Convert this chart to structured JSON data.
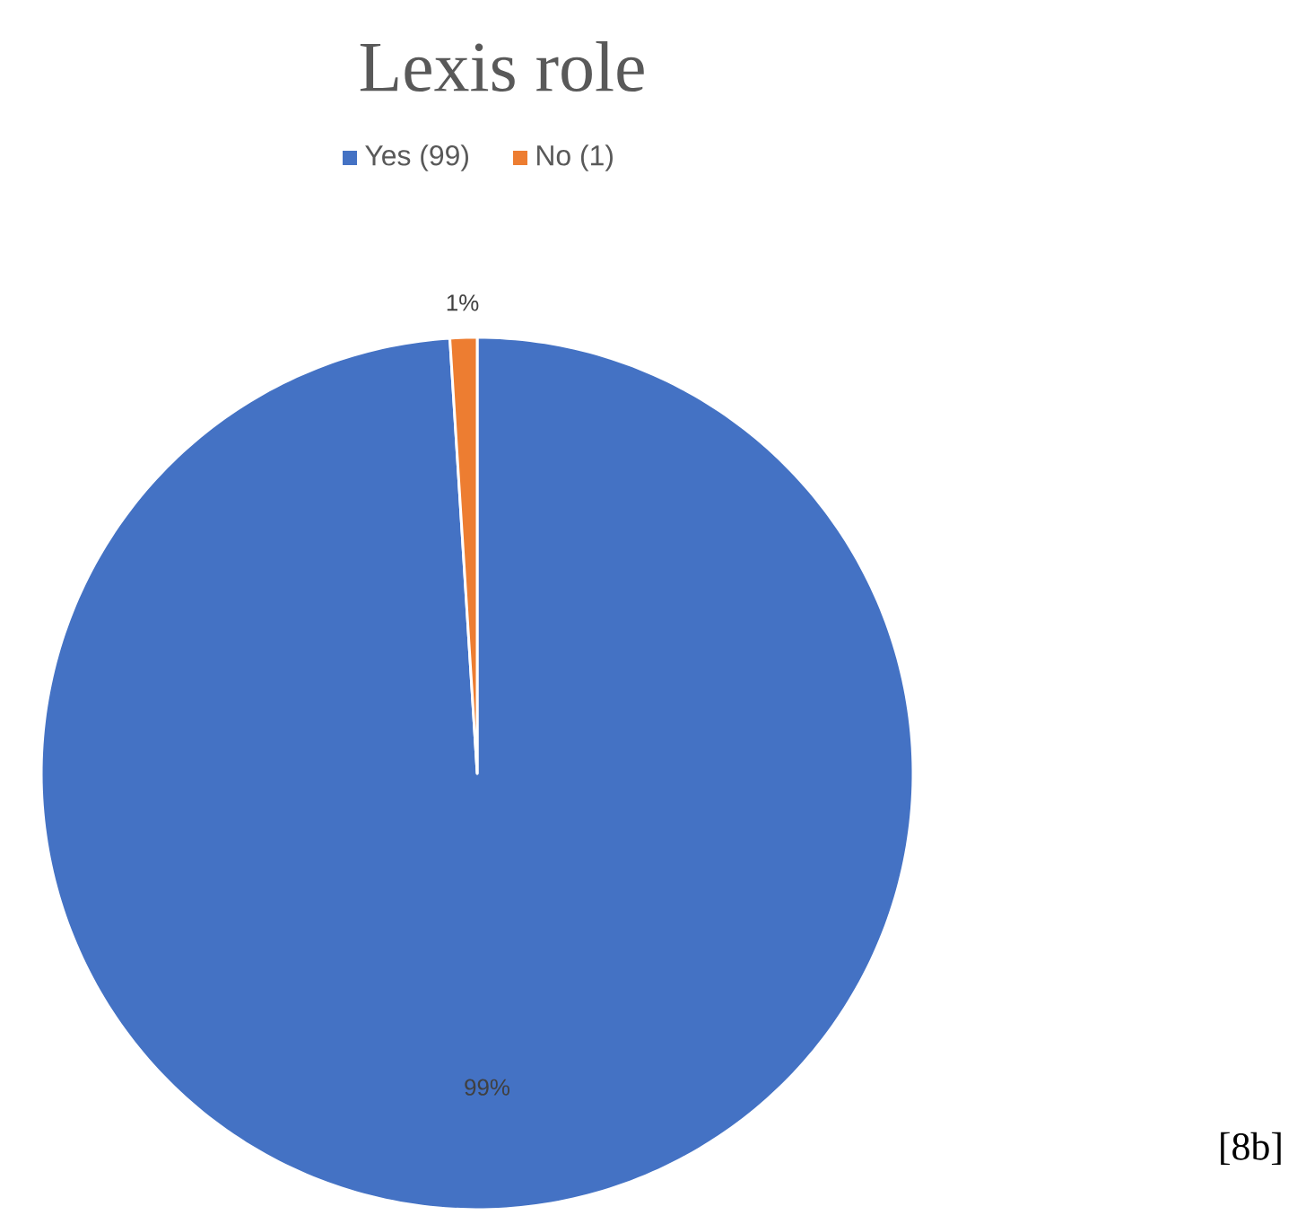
{
  "chart_data": {
    "type": "pie",
    "title": "Lexis role",
    "categories": [
      "Yes (99)",
      "No (1)"
    ],
    "values": [
      99,
      1
    ],
    "colors": [
      "#4472c4",
      "#ed7d31"
    ],
    "value_labels": [
      "99%",
      "1%"
    ],
    "legend": "top",
    "annotations": [
      "[8b]"
    ]
  }
}
